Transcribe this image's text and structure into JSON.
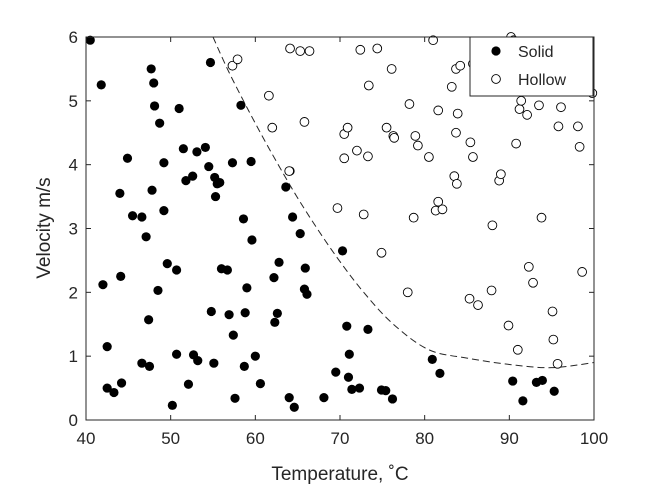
{
  "chart_data": {
    "type": "scatter",
    "title": "",
    "xlabel": "Temperature, ˚C",
    "ylabel": "Velocity m/s",
    "xlim": [
      40,
      100
    ],
    "ylim": [
      0,
      6
    ],
    "xticks": [
      "40",
      "50",
      "60",
      "70",
      "80",
      "90",
      "100"
    ],
    "yticks": [
      "0",
      "1",
      "2",
      "3",
      "4",
      "5",
      "6"
    ],
    "grid": false,
    "legend_position": "top-right",
    "series": [
      {
        "name": "Solid",
        "marker": "filled-circle",
        "color": "#000000",
        "points": [
          [
            40.5,
            5.95
          ],
          [
            41.8,
            5.25
          ],
          [
            42.0,
            2.12
          ],
          [
            42.5,
            1.15
          ],
          [
            42.5,
            0.5
          ],
          [
            43.3,
            0.43
          ],
          [
            44.0,
            3.55
          ],
          [
            44.1,
            2.25
          ],
          [
            44.2,
            0.58
          ],
          [
            44.9,
            4.1
          ],
          [
            45.5,
            3.2
          ],
          [
            46.6,
            3.18
          ],
          [
            46.6,
            0.89
          ],
          [
            47.1,
            2.87
          ],
          [
            47.4,
            1.57
          ],
          [
            47.5,
            0.84
          ],
          [
            47.7,
            5.5
          ],
          [
            47.8,
            3.6
          ],
          [
            48.0,
            5.28
          ],
          [
            48.1,
            4.92
          ],
          [
            48.5,
            2.03
          ],
          [
            48.7,
            4.65
          ],
          [
            49.2,
            4.03
          ],
          [
            49.2,
            3.28
          ],
          [
            49.6,
            2.45
          ],
          [
            50.2,
            0.23
          ],
          [
            50.7,
            2.35
          ],
          [
            50.7,
            1.03
          ],
          [
            51.0,
            4.88
          ],
          [
            51.5,
            4.25
          ],
          [
            51.8,
            3.75
          ],
          [
            52.1,
            0.56
          ],
          [
            52.6,
            3.82
          ],
          [
            52.7,
            1.02
          ],
          [
            53.1,
            4.2
          ],
          [
            53.2,
            0.93
          ],
          [
            54.1,
            4.27
          ],
          [
            54.5,
            3.97
          ],
          [
            54.7,
            5.6
          ],
          [
            54.8,
            1.7
          ],
          [
            55.1,
            0.89
          ],
          [
            55.2,
            3.8
          ],
          [
            55.3,
            3.5
          ],
          [
            55.5,
            3.7
          ],
          [
            55.8,
            3.72
          ],
          [
            56.0,
            2.37
          ],
          [
            56.7,
            2.35
          ],
          [
            56.9,
            1.65
          ],
          [
            57.3,
            4.03
          ],
          [
            57.4,
            1.33
          ],
          [
            57.6,
            0.34
          ],
          [
            58.3,
            4.93
          ],
          [
            58.6,
            3.15
          ],
          [
            58.7,
            0.84
          ],
          [
            58.8,
            1.68
          ],
          [
            59.0,
            2.07
          ],
          [
            59.5,
            4.05
          ],
          [
            59.6,
            2.82
          ],
          [
            60.0,
            1.0
          ],
          [
            60.6,
            0.57
          ],
          [
            62.2,
            2.23
          ],
          [
            62.3,
            1.53
          ],
          [
            62.6,
            1.67
          ],
          [
            62.8,
            2.47
          ],
          [
            63.6,
            3.65
          ],
          [
            64.0,
            0.35
          ],
          [
            64.1,
            3.9
          ],
          [
            64.4,
            3.18
          ],
          [
            64.6,
            0.2
          ],
          [
            65.3,
            2.92
          ],
          [
            65.8,
            2.05
          ],
          [
            65.9,
            2.38
          ],
          [
            66.1,
            1.97
          ],
          [
            68.1,
            0.35
          ],
          [
            69.5,
            0.75
          ],
          [
            70.3,
            2.65
          ],
          [
            70.8,
            1.47
          ],
          [
            71.0,
            0.67
          ],
          [
            71.1,
            1.03
          ],
          [
            71.4,
            0.48
          ],
          [
            72.3,
            0.5
          ],
          [
            73.3,
            1.42
          ],
          [
            74.9,
            0.47
          ],
          [
            75.4,
            0.46
          ],
          [
            76.2,
            0.33
          ],
          [
            80.9,
            0.95
          ],
          [
            81.8,
            0.73
          ],
          [
            90.4,
            0.61
          ],
          [
            91.6,
            0.3
          ],
          [
            93.2,
            0.59
          ],
          [
            93.9,
            0.62
          ],
          [
            95.3,
            0.45
          ]
        ]
      },
      {
        "name": "Hollow",
        "marker": "open-circle",
        "color": "#000000",
        "points": [
          [
            57.3,
            5.55
          ],
          [
            57.9,
            5.65
          ],
          [
            61.6,
            5.08
          ],
          [
            62.0,
            4.58
          ],
          [
            64.0,
            3.9
          ],
          [
            64.1,
            5.82
          ],
          [
            65.3,
            5.78
          ],
          [
            65.8,
            4.67
          ],
          [
            66.4,
            5.78
          ],
          [
            69.7,
            3.32
          ],
          [
            70.5,
            4.1
          ],
          [
            70.5,
            4.48
          ],
          [
            70.9,
            4.58
          ],
          [
            72.0,
            4.22
          ],
          [
            72.4,
            5.8
          ],
          [
            72.8,
            3.22
          ],
          [
            73.3,
            4.13
          ],
          [
            73.4,
            5.24
          ],
          [
            74.4,
            5.82
          ],
          [
            74.9,
            2.62
          ],
          [
            75.5,
            4.58
          ],
          [
            76.1,
            5.5
          ],
          [
            76.3,
            4.45
          ],
          [
            76.4,
            4.42
          ],
          [
            78.0,
            2.0
          ],
          [
            78.2,
            4.95
          ],
          [
            78.7,
            3.17
          ],
          [
            78.9,
            4.45
          ],
          [
            79.2,
            4.3
          ],
          [
            80.5,
            4.12
          ],
          [
            81.0,
            5.95
          ],
          [
            81.3,
            3.28
          ],
          [
            81.6,
            4.85
          ],
          [
            81.6,
            3.42
          ],
          [
            82.1,
            3.3
          ],
          [
            83.2,
            5.22
          ],
          [
            83.5,
            3.82
          ],
          [
            83.7,
            5.5
          ],
          [
            83.7,
            4.5
          ],
          [
            83.8,
            3.7
          ],
          [
            83.9,
            4.8
          ],
          [
            84.2,
            5.55
          ],
          [
            85.3,
            1.9
          ],
          [
            85.4,
            4.35
          ],
          [
            85.7,
            4.12
          ],
          [
            85.7,
            5.58
          ],
          [
            86.3,
            1.8
          ],
          [
            87.9,
            2.03
          ],
          [
            88.0,
            3.05
          ],
          [
            88.8,
            3.75
          ],
          [
            89.0,
            3.85
          ],
          [
            89.9,
            1.48
          ],
          [
            90.2,
            6.0
          ],
          [
            90.5,
            5.95
          ],
          [
            90.8,
            4.33
          ],
          [
            91.0,
            1.1
          ],
          [
            91.2,
            4.87
          ],
          [
            91.4,
            5.0
          ],
          [
            91.7,
            5.35
          ],
          [
            92.1,
            4.78
          ],
          [
            92.3,
            2.4
          ],
          [
            92.8,
            2.15
          ],
          [
            93.5,
            4.93
          ],
          [
            93.8,
            3.17
          ],
          [
            94.0,
            5.4
          ],
          [
            95.1,
            1.7
          ],
          [
            95.2,
            1.26
          ],
          [
            95.7,
            0.88
          ],
          [
            95.8,
            4.6
          ],
          [
            96.1,
            4.9
          ],
          [
            98.1,
            4.6
          ],
          [
            98.3,
            4.28
          ],
          [
            98.6,
            2.32
          ],
          [
            99.8,
            5.12
          ]
        ]
      }
    ],
    "boundary": {
      "style": "dashed",
      "points": [
        [
          55.0,
          6.0
        ],
        [
          56.7,
          5.5
        ],
        [
          58.6,
          5.0
        ],
        [
          60.6,
          4.5
        ],
        [
          62.7,
          4.0
        ],
        [
          64.9,
          3.5
        ],
        [
          67.3,
          3.0
        ],
        [
          69.9,
          2.5
        ],
        [
          72.8,
          2.0
        ],
        [
          76.3,
          1.5
        ],
        [
          80.5,
          1.1
        ],
        [
          85.0,
          0.97
        ],
        [
          90.0,
          0.87
        ],
        [
          95.0,
          0.82
        ],
        [
          100.0,
          0.9
        ]
      ]
    }
  }
}
